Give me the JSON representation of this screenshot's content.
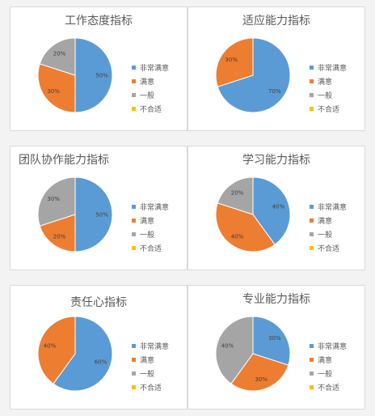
{
  "colors": {
    "非常满意": "#5b9bd5",
    "满意": "#ed7d31",
    "一般": "#a5a5a5",
    "不合适": "#ffc000"
  },
  "legend_labels": [
    "非常满意",
    "满意",
    "一般",
    "不合适"
  ],
  "chart_data": [
    {
      "type": "pie",
      "title": "工作态度指标",
      "categories": [
        "非常满意",
        "满意",
        "一般",
        "不合适"
      ],
      "values": [
        50,
        30,
        20,
        0
      ],
      "data_labels": [
        "50%",
        "30%",
        "20%",
        ""
      ]
    },
    {
      "type": "pie",
      "title": "适应能力指标",
      "categories": [
        "非常满意",
        "满意",
        "一般",
        "不合适"
      ],
      "values": [
        70,
        30,
        0,
        0
      ],
      "data_labels": [
        "70%",
        "30%",
        "",
        ""
      ]
    },
    {
      "type": "pie",
      "title": "团队协作能力指标",
      "categories": [
        "非常满意",
        "满意",
        "一般",
        "不合适"
      ],
      "values": [
        50,
        20,
        30,
        0
      ],
      "data_labels": [
        "50%",
        "20%",
        "30%",
        ""
      ]
    },
    {
      "type": "pie",
      "title": "学习能力指标",
      "categories": [
        "非常满意",
        "满意",
        "一般",
        "不合适"
      ],
      "values": [
        40,
        40,
        20,
        0
      ],
      "data_labels": [
        "40%",
        "40%",
        "20%",
        ""
      ]
    },
    {
      "type": "pie",
      "title": "责任心指标",
      "categories": [
        "非常满意",
        "满意",
        "一般",
        "不合适"
      ],
      "values": [
        60,
        40,
        0,
        0
      ],
      "data_labels": [
        "60%",
        "40%",
        "",
        ""
      ]
    },
    {
      "type": "pie",
      "title": "专业能力指标",
      "categories": [
        "非常满意",
        "满意",
        "一般",
        "不合适"
      ],
      "values": [
        30,
        30,
        40,
        0
      ],
      "data_labels": [
        "30%",
        "30%",
        "40%",
        ""
      ]
    }
  ]
}
